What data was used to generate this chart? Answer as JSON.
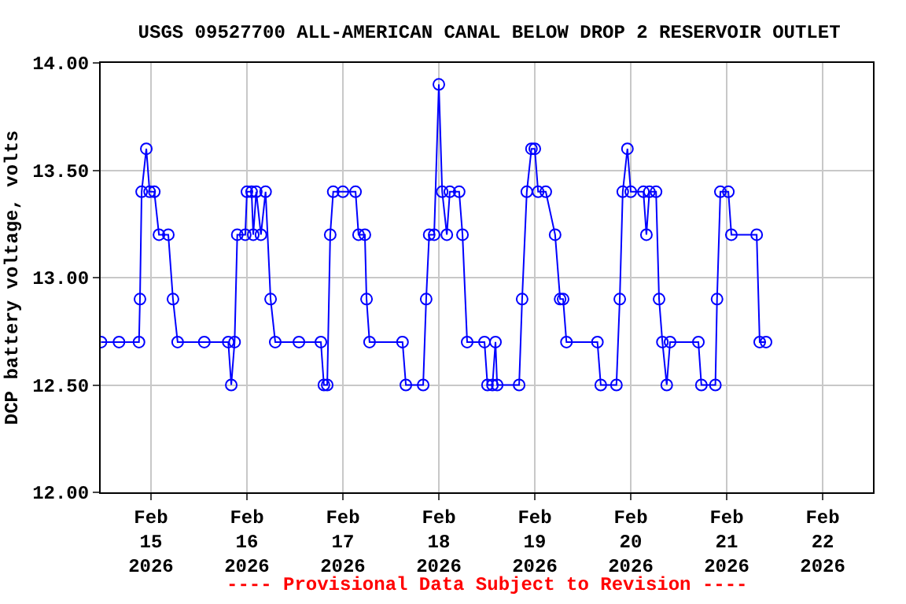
{
  "chart_data": {
    "type": "line",
    "title": "USGS 09527700 ALL-AMERICAN CANAL BELOW DROP 2 RESERVOIR OUTLET",
    "ylabel": "DCP battery voltage, volts",
    "annotations": [
      "---- Provisional Data Subject to Revision ----"
    ],
    "x": [
      "2026-02-14T11:30",
      "2026-02-14T16:00",
      "2026-02-14T21:00",
      "2026-02-14T21:15",
      "2026-02-14T21:40",
      "2026-02-14T22:50",
      "2026-02-14T23:40",
      "2026-02-15T00:50",
      "2026-02-15T02:00",
      "2026-02-15T04:20",
      "2026-02-15T05:30",
      "2026-02-15T06:40",
      "2026-02-15T13:20",
      "2026-02-15T19:20",
      "2026-02-15T20:05",
      "2026-02-15T20:55",
      "2026-02-15T21:35",
      "2026-02-15T23:35",
      "2026-02-16T00:00",
      "2026-02-16T01:10",
      "2026-02-16T01:35",
      "2026-02-16T02:20",
      "2026-02-16T03:30",
      "2026-02-16T04:40",
      "2026-02-16T05:55",
      "2026-02-16T07:05",
      "2026-02-16T13:00",
      "2026-02-16T18:30",
      "2026-02-16T19:15",
      "2026-02-16T20:05",
      "2026-02-16T20:50",
      "2026-02-16T21:35",
      "2026-02-17T00:00",
      "2026-02-17T03:10",
      "2026-02-17T03:55",
      "2026-02-17T05:30",
      "2026-02-17T05:55",
      "2026-02-17T06:40",
      "2026-02-17T14:55",
      "2026-02-17T15:45",
      "2026-02-17T20:05",
      "2026-02-17T20:50",
      "2026-02-17T21:35",
      "2026-02-17T22:50",
      "2026-02-18T00:00",
      "2026-02-18T00:50",
      "2026-02-18T02:00",
      "2026-02-18T02:45",
      "2026-02-18T05:05",
      "2026-02-18T05:55",
      "2026-02-18T07:05",
      "2026-02-18T11:25",
      "2026-02-18T12:10",
      "2026-02-18T13:25",
      "2026-02-18T14:10",
      "2026-02-18T14:35",
      "2026-02-18T20:05",
      "2026-02-18T20:50",
      "2026-02-18T22:00",
      "2026-02-18T23:10",
      "2026-02-19T00:00",
      "2026-02-19T00:50",
      "2026-02-19T02:45",
      "2026-02-19T05:05",
      "2026-02-19T06:20",
      "2026-02-19T07:05",
      "2026-02-19T07:55",
      "2026-02-19T15:40",
      "2026-02-19T16:30",
      "2026-02-19T20:25",
      "2026-02-19T21:15",
      "2026-02-19T22:00",
      "2026-02-19T23:10",
      "2026-02-20T00:00",
      "2026-02-20T03:10",
      "2026-02-20T03:55",
      "2026-02-20T04:40",
      "2026-02-20T06:20",
      "2026-02-20T07:05",
      "2026-02-20T07:55",
      "2026-02-20T09:00",
      "2026-02-20T09:50",
      "2026-02-20T16:55",
      "2026-02-20T17:40",
      "2026-02-20T21:10",
      "2026-02-20T21:35",
      "2026-02-20T22:25",
      "2026-02-21T00:25",
      "2026-02-21T01:10",
      "2026-02-21T07:30",
      "2026-02-21T08:15",
      "2026-02-21T09:50"
    ],
    "series": [
      {
        "color": "#0000ff",
        "values": [
          12.7,
          12.7,
          12.7,
          12.9,
          13.4,
          13.6,
          13.4,
          13.4,
          13.2,
          13.2,
          12.9,
          12.7,
          12.7,
          12.7,
          12.5,
          12.7,
          13.2,
          13.2,
          13.4,
          13.4,
          13.2,
          13.4,
          13.2,
          13.4,
          12.9,
          12.7,
          12.7,
          12.7,
          12.5,
          12.5,
          13.2,
          13.4,
          13.4,
          13.4,
          13.2,
          13.2,
          12.9,
          12.7,
          12.7,
          12.5,
          12.5,
          12.9,
          13.2,
          13.2,
          13.9,
          13.4,
          13.2,
          13.4,
          13.4,
          13.2,
          12.7,
          12.7,
          12.5,
          12.5,
          12.7,
          12.5,
          12.5,
          12.9,
          13.4,
          13.6,
          13.6,
          13.4,
          13.4,
          13.2,
          12.9,
          12.9,
          12.7,
          12.7,
          12.5,
          12.5,
          12.9,
          13.4,
          13.6,
          13.4,
          13.4,
          13.2,
          13.4,
          13.4,
          12.9,
          12.7,
          12.5,
          12.7,
          12.7,
          12.5,
          12.5,
          12.9,
          13.4,
          13.4,
          13.2,
          13.2,
          12.7,
          12.7
        ]
      }
    ],
    "xlim": [
      "2026-02-14T11:25",
      "2026-02-22T12:35"
    ],
    "xticks": [
      {
        "value": "2026-02-15",
        "label": "Feb\n15\n2026"
      },
      {
        "value": "2026-02-16",
        "label": "Feb\n16\n2026"
      },
      {
        "value": "2026-02-17",
        "label": "Feb\n17\n2026"
      },
      {
        "value": "2026-02-18",
        "label": "Feb\n18\n2026"
      },
      {
        "value": "2026-02-19",
        "label": "Feb\n19\n2026"
      },
      {
        "value": "2026-02-20",
        "label": "Feb\n20\n2026"
      },
      {
        "value": "2026-02-21",
        "label": "Feb\n21\n2026"
      },
      {
        "value": "2026-02-22",
        "label": "Feb\n22\n2026"
      }
    ],
    "ylim": [
      12,
      14
    ],
    "yticks": [
      {
        "value": 12,
        "label": "12.00"
      },
      {
        "value": 12.5,
        "label": "12.50"
      },
      {
        "value": 13,
        "label": "13.00"
      },
      {
        "value": 13.5,
        "label": "13.50"
      },
      {
        "value": 14,
        "label": "14.00"
      }
    ],
    "grid": true,
    "marker": "circle",
    "line_style": "solid"
  }
}
